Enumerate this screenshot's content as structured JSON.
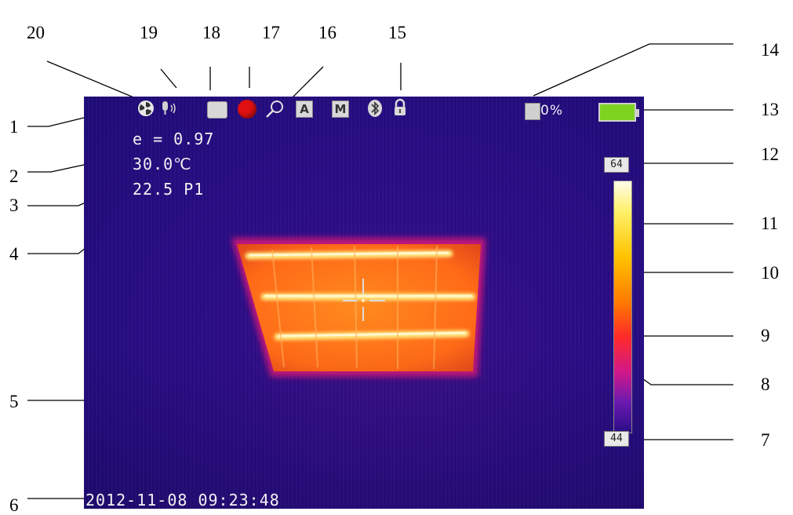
{
  "callouts": [
    "1",
    "2",
    "3",
    "4",
    "5",
    "6",
    "7",
    "8",
    "9",
    "10",
    "11",
    "12",
    "13",
    "14",
    "15",
    "16",
    "17",
    "18",
    "19",
    "20"
  ],
  "screen": {
    "emissivity": "e = 0.97",
    "temperature": "30.0℃",
    "ambient": "22.5 P1",
    "datetime": "2012-11-08 09:23:48",
    "memory": "0%",
    "scale_max": "64",
    "scale_min": "44",
    "mode_auto": "A",
    "mode_manual": "M"
  },
  "icons": [
    "fan-icon",
    "microphone-icon",
    "image-icon",
    "record-icon",
    "zoom-icon",
    "auto-mode-icon",
    "manual-mode-icon",
    "bluetooth-icon",
    "lock-icon",
    "memory-card-icon",
    "battery-icon"
  ],
  "colors": {
    "background_cold": "#2a0c86",
    "hot_core": "#ffe36a",
    "hot_body": "#ff7a1a",
    "battery": "#7ed321",
    "record": "#e01010"
  }
}
